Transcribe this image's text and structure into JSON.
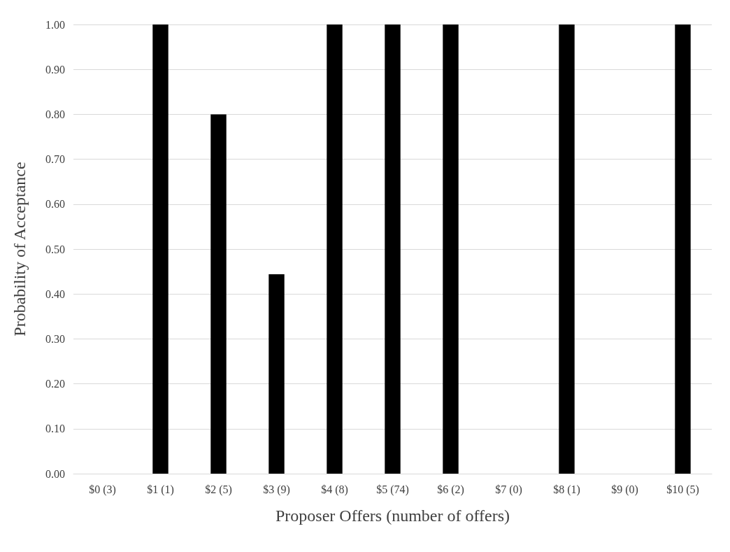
{
  "chart_data": {
    "type": "bar",
    "xlabel": "Proposer Offers (number of offers)",
    "ylabel": "Probability of Acceptance",
    "categories": [
      "$0 (3)",
      "$1 (1)",
      "$2 (5)",
      "$3 (9)",
      "$4 (8)",
      "$5 (74)",
      "$6 (2)",
      "$7 (0)",
      "$8 (1)",
      "$9 (0)",
      "$10 (5)"
    ],
    "values": [
      0,
      1,
      0.8,
      0.444,
      1,
      1,
      1,
      null,
      1,
      null,
      1
    ],
    "color": "#000000",
    "ylim": [
      0,
      1
    ],
    "yticks": [
      {
        "value": 0,
        "label": "0.00"
      },
      {
        "value": 0.1,
        "label": "0.10"
      },
      {
        "value": 0.2,
        "label": "0.20"
      },
      {
        "value": 0.3,
        "label": "0.30"
      },
      {
        "value": 0.4,
        "label": "0.40"
      },
      {
        "value": 0.5,
        "label": "0.50"
      },
      {
        "value": 0.6,
        "label": "0.60"
      },
      {
        "value": 0.7,
        "label": "0.70"
      },
      {
        "value": 0.8,
        "label": "0.80"
      },
      {
        "value": 0.9,
        "label": "0.90"
      },
      {
        "value": 1,
        "label": "1.00"
      }
    ],
    "grid": "y"
  }
}
